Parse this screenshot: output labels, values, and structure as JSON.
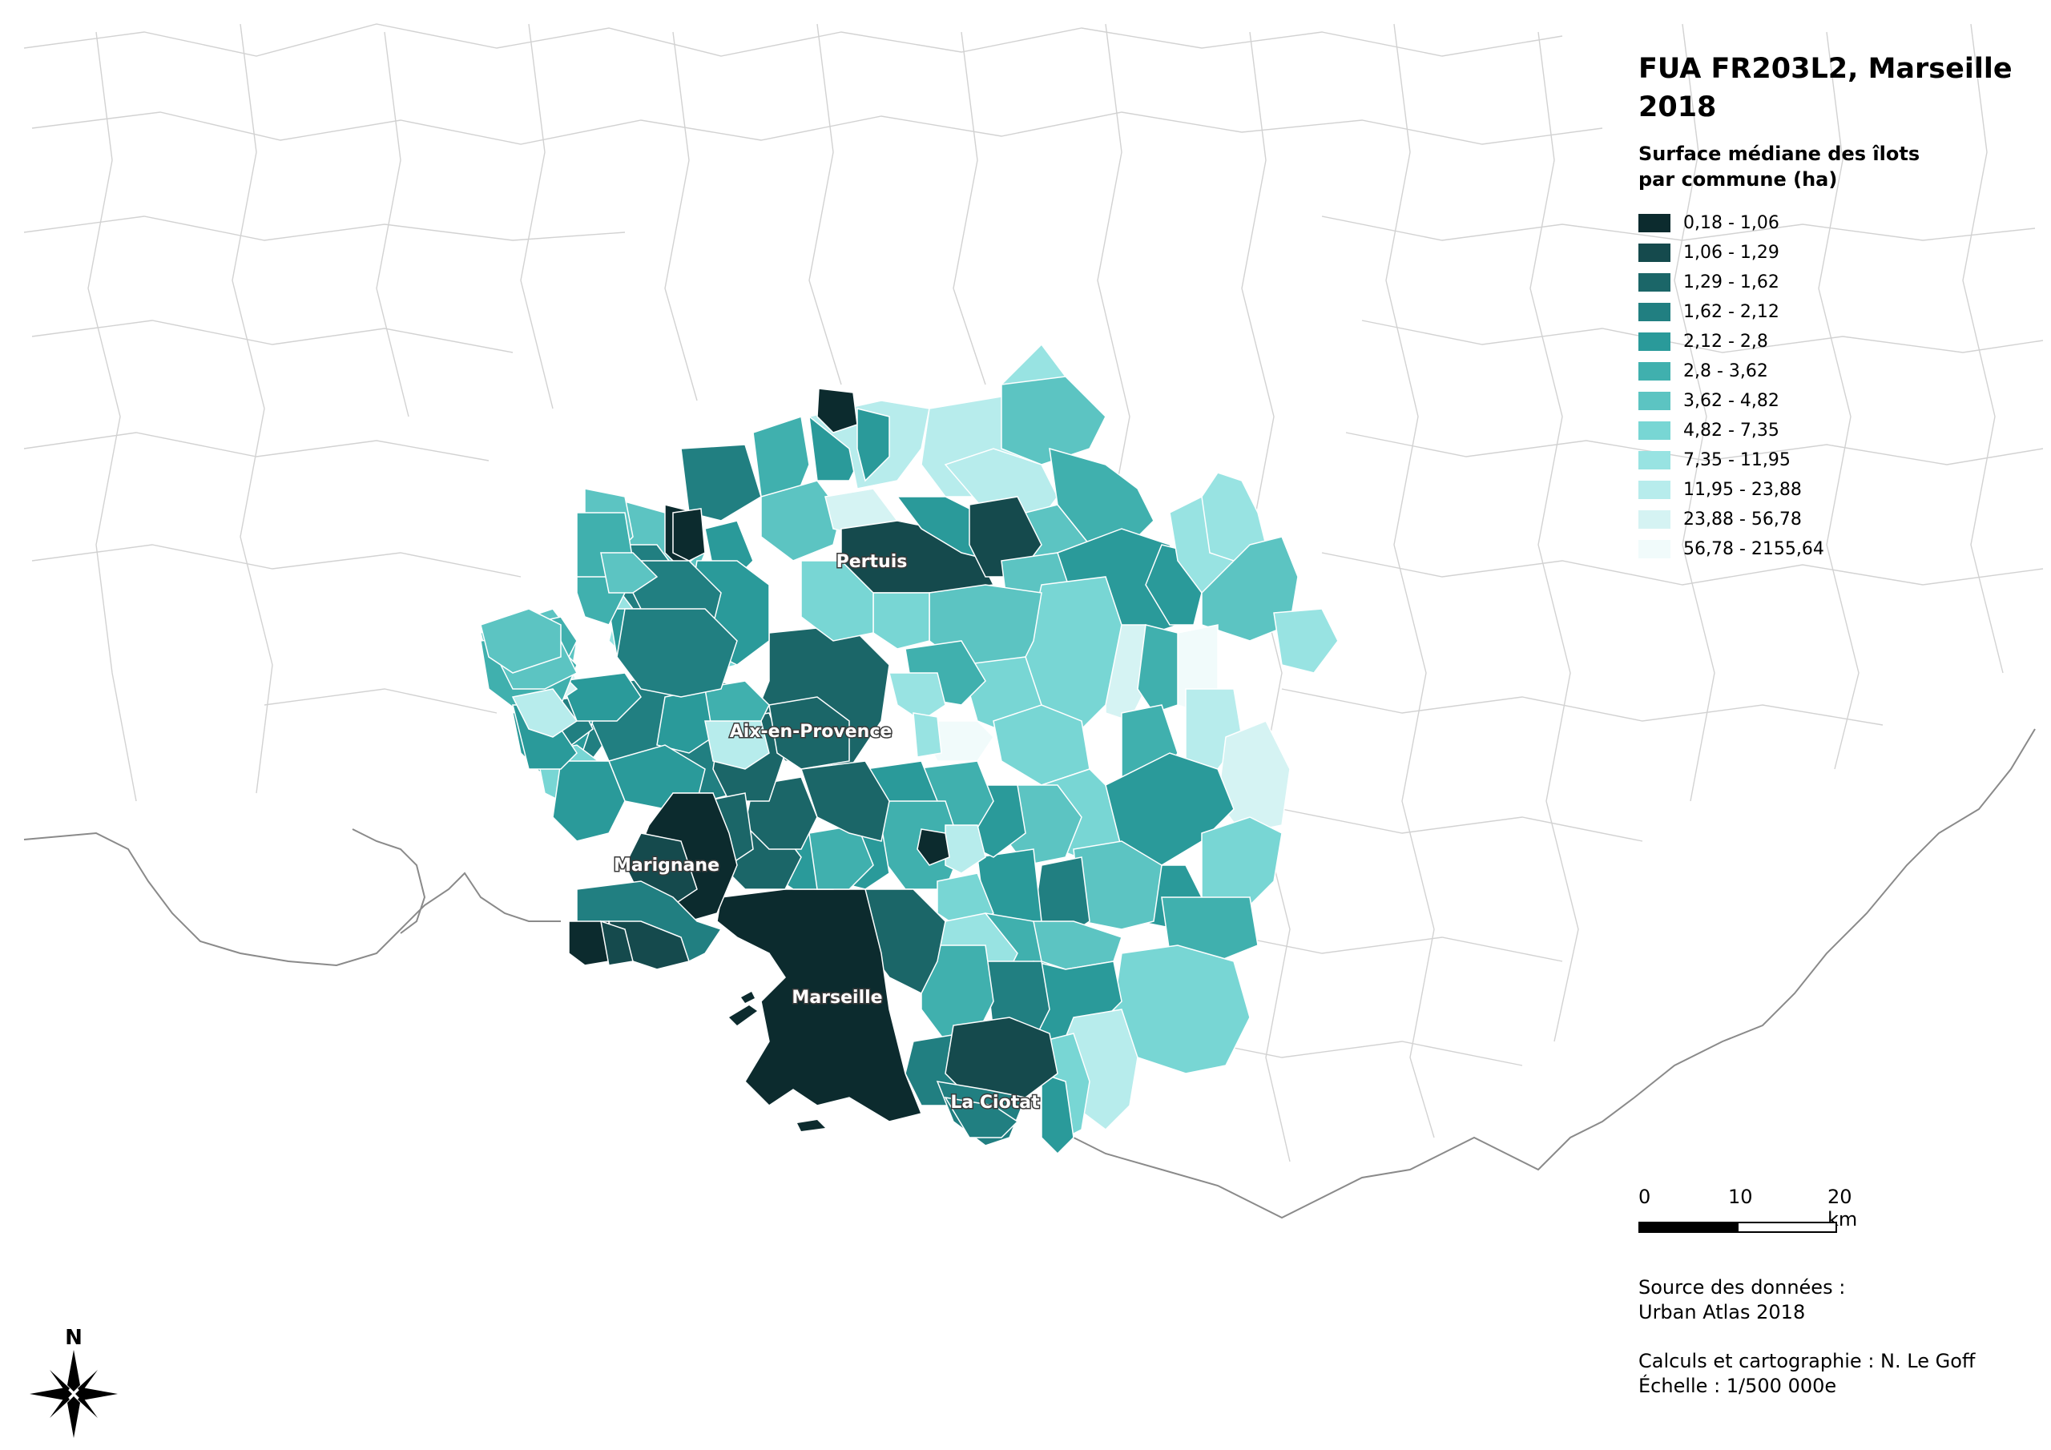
{
  "map": {
    "title_line1": "FUA FR203L2, Marseille",
    "title_line2": "2018",
    "legend_title_line1": "Surface médiane des îlots",
    "legend_title_line2": "par commune (ha)",
    "classes": [
      {
        "label": "0,18 - 1,06",
        "color": "#0c2b2e"
      },
      {
        "label": "1,06 - 1,29",
        "color": "#154a4d"
      },
      {
        "label": "1,29 - 1,62",
        "color": "#1b6668"
      },
      {
        "label": "1,62 - 2,12",
        "color": "#217f81"
      },
      {
        "label": "2,12 - 2,8",
        "color": "#2a9a9a"
      },
      {
        "label": "2,8 - 3,62",
        "color": "#40b0ae"
      },
      {
        "label": "3,62 - 4,82",
        "color": "#5cc4c2"
      },
      {
        "label": "4,82 - 7,35",
        "color": "#78d6d4"
      },
      {
        "label": "7,35 - 11,95",
        "color": "#98e3e2"
      },
      {
        "label": "11,95 - 23,88",
        "color": "#b7ecec"
      },
      {
        "label": "23,88 - 56,78",
        "color": "#d5f3f3"
      },
      {
        "label": "56,78 - 2155,64",
        "color": "#f1fbfb"
      }
    ],
    "cities": [
      "Pertuis",
      "Aix-en-Provence",
      "Marignane",
      "Marseille",
      "La Ciotat"
    ],
    "scale": {
      "ticks": [
        "0",
        "10",
        "20 km"
      ]
    },
    "source_line1": "Source des données :",
    "source_line2": "Urban Atlas 2018",
    "credit_line1": "Calculs et cartographie : N. Le Goff",
    "credit_line2": "Échelle : 1/500 000e",
    "north_label": "N"
  }
}
